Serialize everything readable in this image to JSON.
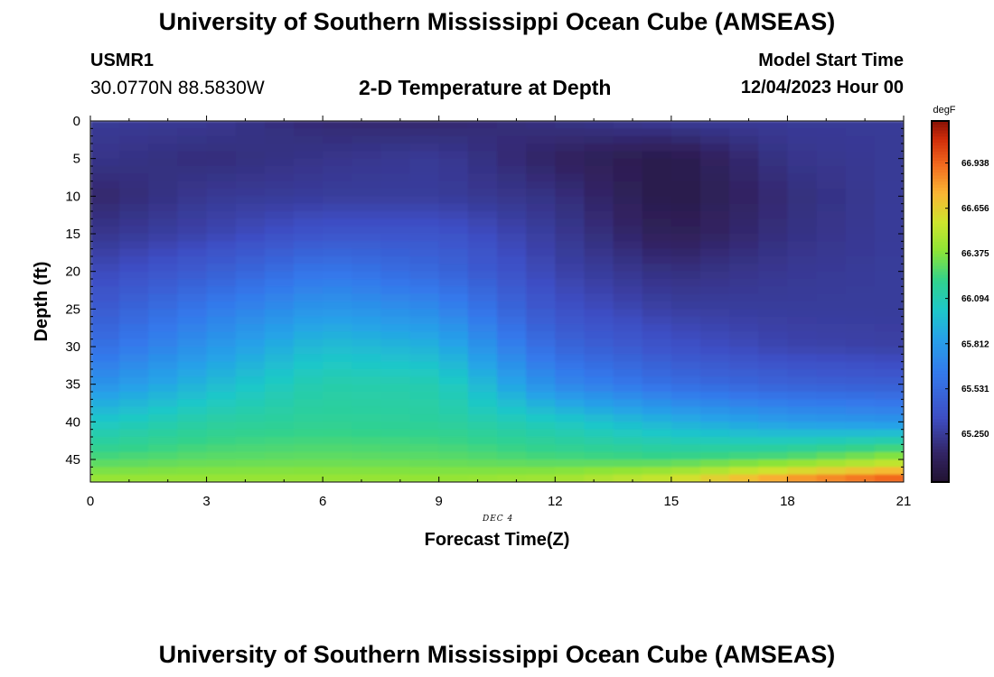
{
  "page": {
    "title": "University of Southern Mississippi Ocean Cube (AMSEAS)",
    "footer_title": "University of Southern Mississippi Ocean Cube (AMSEAS)",
    "station_id": "USMR1",
    "coordinates": "30.0770N  88.5830W",
    "plot_title": "2-D Temperature at Depth",
    "model_start_label": "Model Start Time",
    "model_start_value": "12/04/2023 Hour 00",
    "date_label": "DEC 4"
  },
  "chart_data": {
    "type": "heatmap",
    "title": "2-D Temperature at Depth",
    "xlabel": "Forecast Time(Z)",
    "ylabel": "Depth (ft)",
    "xlim": [
      0,
      21
    ],
    "ylim": [
      48,
      0
    ],
    "x_ticks": [
      "0",
      "3",
      "6",
      "9",
      "12",
      "15",
      "18",
      "21"
    ],
    "y_ticks": [
      "0",
      "5",
      "10",
      "15",
      "20",
      "25",
      "30",
      "35",
      "40",
      "45"
    ],
    "colorbar": {
      "unit": "degF",
      "range": [
        64.95,
        67.2
      ],
      "tick_labels": [
        "65.250",
        "65.531",
        "65.812",
        "66.094",
        "66.375",
        "66.656",
        "66.938"
      ]
    },
    "grid_times": [
      0,
      3,
      6,
      9,
      12,
      15,
      18,
      21
    ],
    "grid_depths": [
      0,
      5,
      10,
      15,
      20,
      25,
      30,
      35,
      40,
      45,
      48
    ],
    "values": [
      [
        65.25,
        65.24,
        65.16,
        65.15,
        65.2,
        65.25,
        65.25,
        65.25
      ],
      [
        65.22,
        65.18,
        65.22,
        65.25,
        65.12,
        65.04,
        65.22,
        65.25
      ],
      [
        65.14,
        65.24,
        65.26,
        65.26,
        65.2,
        65.03,
        65.18,
        65.26
      ],
      [
        65.22,
        65.3,
        65.4,
        65.4,
        65.25,
        65.08,
        65.2,
        65.26
      ],
      [
        65.32,
        65.45,
        65.62,
        65.52,
        65.3,
        65.19,
        65.24,
        65.26
      ],
      [
        65.42,
        65.63,
        65.8,
        65.72,
        65.38,
        65.27,
        65.26,
        65.26
      ],
      [
        65.55,
        65.78,
        65.98,
        65.92,
        65.52,
        65.38,
        65.3,
        65.28
      ],
      [
        65.75,
        65.95,
        66.12,
        66.1,
        65.72,
        65.56,
        65.48,
        65.45
      ],
      [
        66.02,
        66.14,
        66.18,
        66.16,
        66.05,
        65.92,
        65.82,
        65.78
      ],
      [
        66.26,
        66.3,
        66.31,
        66.3,
        66.26,
        66.24,
        66.3,
        66.45
      ],
      [
        66.45,
        66.44,
        66.44,
        66.43,
        66.48,
        66.62,
        66.9,
        67.05
      ]
    ]
  }
}
